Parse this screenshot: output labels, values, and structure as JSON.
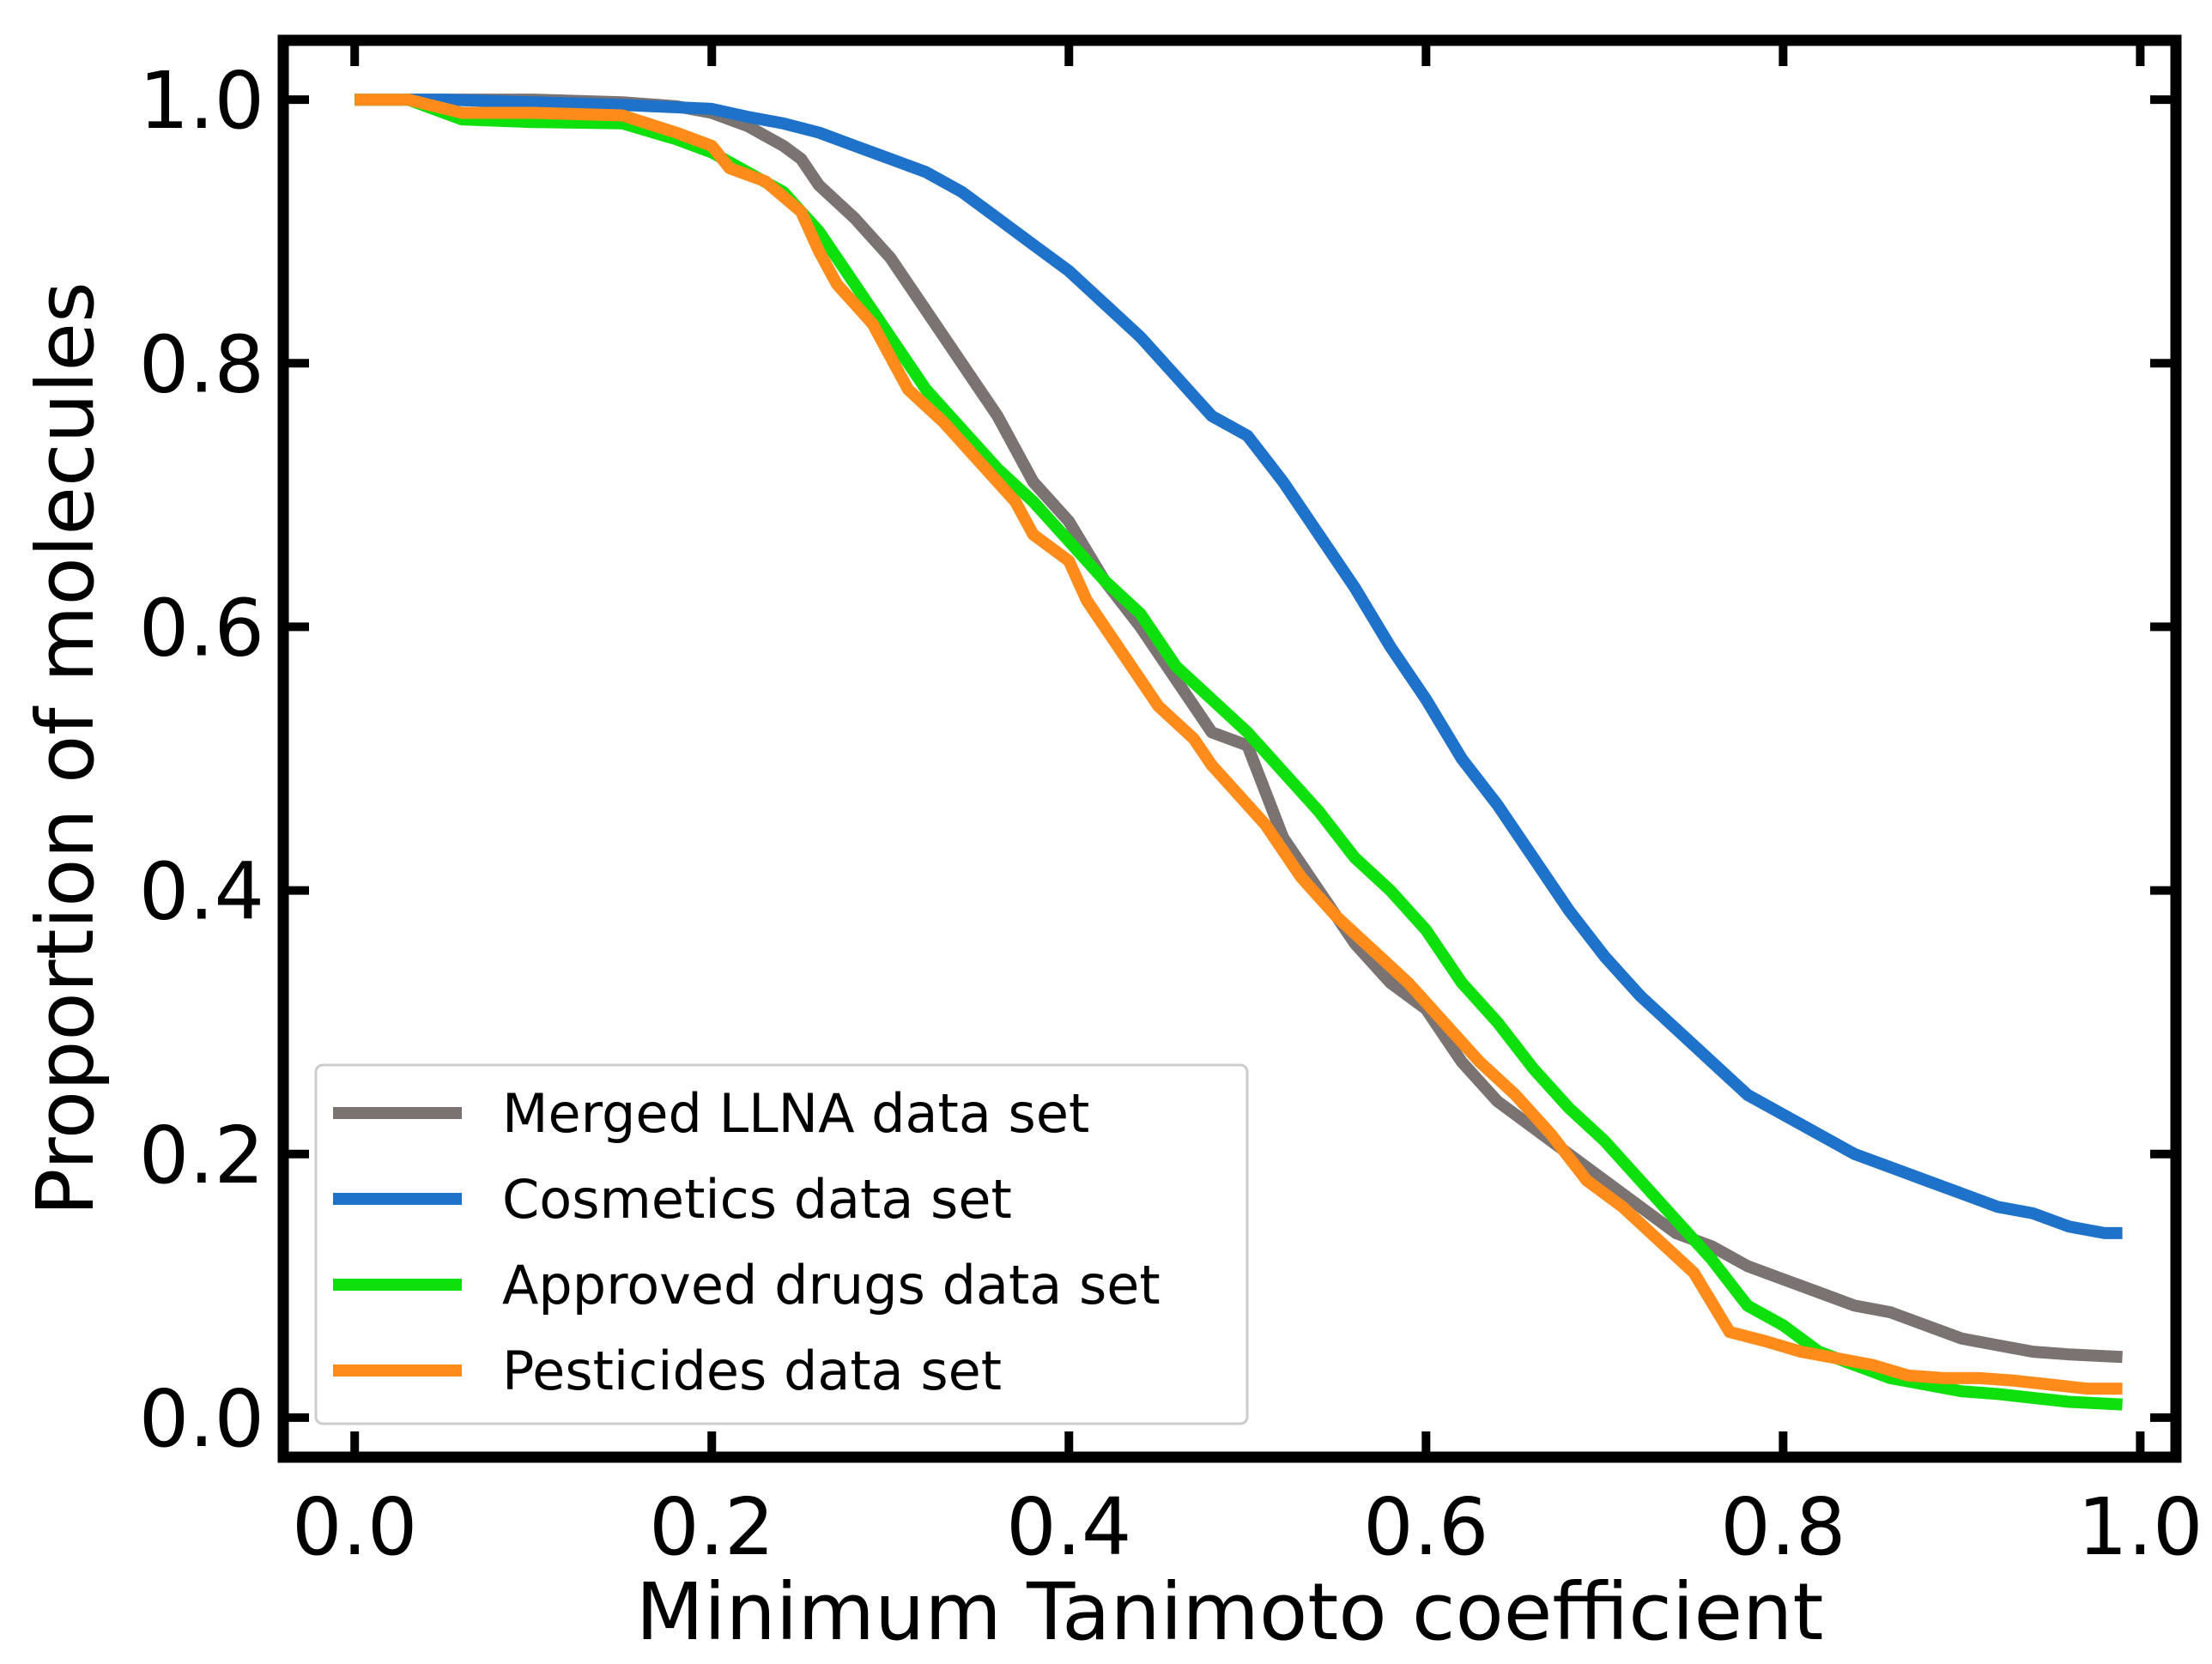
{
  "chart_data": {
    "type": "line",
    "title": "",
    "xlabel": "Minimum Tanimoto coefficient",
    "ylabel": "Proportion of molecules",
    "xlim": [
      -0.04,
      1.02
    ],
    "ylim": [
      -0.03,
      1.045
    ],
    "xticks": [
      "0.0",
      "0.2",
      "0.4",
      "0.6",
      "0.8",
      "1.0"
    ],
    "yticks": [
      "0.0",
      "0.2",
      "0.4",
      "0.6",
      "0.8",
      "1.0"
    ],
    "grid": false,
    "legend_position": "lower-left",
    "series": [
      {
        "name": "Merged LLNA data set",
        "color": "#7b7272",
        "points": [
          [
            0.0,
            1.0
          ],
          [
            0.05,
            1.0
          ],
          [
            0.1,
            1.0
          ],
          [
            0.15,
            0.998
          ],
          [
            0.18,
            0.995
          ],
          [
            0.2,
            0.99
          ],
          [
            0.22,
            0.98
          ],
          [
            0.24,
            0.965
          ],
          [
            0.25,
            0.955
          ],
          [
            0.26,
            0.935
          ],
          [
            0.28,
            0.91
          ],
          [
            0.3,
            0.88
          ],
          [
            0.32,
            0.84
          ],
          [
            0.34,
            0.8
          ],
          [
            0.36,
            0.76
          ],
          [
            0.38,
            0.71
          ],
          [
            0.4,
            0.68
          ],
          [
            0.42,
            0.635
          ],
          [
            0.44,
            0.6
          ],
          [
            0.46,
            0.56
          ],
          [
            0.48,
            0.52
          ],
          [
            0.5,
            0.51
          ],
          [
            0.52,
            0.44
          ],
          [
            0.54,
            0.4
          ],
          [
            0.56,
            0.36
          ],
          [
            0.58,
            0.33
          ],
          [
            0.6,
            0.31
          ],
          [
            0.62,
            0.27
          ],
          [
            0.64,
            0.24
          ],
          [
            0.66,
            0.22
          ],
          [
            0.68,
            0.2
          ],
          [
            0.7,
            0.18
          ],
          [
            0.72,
            0.16
          ],
          [
            0.74,
            0.14
          ],
          [
            0.76,
            0.13
          ],
          [
            0.78,
            0.115
          ],
          [
            0.8,
            0.105
          ],
          [
            0.82,
            0.095
          ],
          [
            0.84,
            0.085
          ],
          [
            0.86,
            0.08
          ],
          [
            0.88,
            0.07
          ],
          [
            0.9,
            0.06
          ],
          [
            0.92,
            0.055
          ],
          [
            0.94,
            0.05
          ],
          [
            0.96,
            0.048
          ],
          [
            0.99,
            0.046
          ]
        ]
      },
      {
        "name": "Cosmetics data set",
        "color": "#1f72c9",
        "points": [
          [
            0.0,
            1.0
          ],
          [
            0.05,
            1.0
          ],
          [
            0.1,
            0.998
          ],
          [
            0.15,
            0.996
          ],
          [
            0.2,
            0.993
          ],
          [
            0.22,
            0.987
          ],
          [
            0.24,
            0.982
          ],
          [
            0.26,
            0.975
          ],
          [
            0.28,
            0.965
          ],
          [
            0.3,
            0.955
          ],
          [
            0.32,
            0.945
          ],
          [
            0.34,
            0.93
          ],
          [
            0.36,
            0.91
          ],
          [
            0.38,
            0.89
          ],
          [
            0.4,
            0.87
          ],
          [
            0.42,
            0.845
          ],
          [
            0.44,
            0.82
          ],
          [
            0.46,
            0.79
          ],
          [
            0.48,
            0.76
          ],
          [
            0.5,
            0.745
          ],
          [
            0.52,
            0.71
          ],
          [
            0.54,
            0.67
          ],
          [
            0.56,
            0.63
          ],
          [
            0.58,
            0.585
          ],
          [
            0.6,
            0.545
          ],
          [
            0.62,
            0.5
          ],
          [
            0.64,
            0.465
          ],
          [
            0.66,
            0.425
          ],
          [
            0.68,
            0.385
          ],
          [
            0.7,
            0.35
          ],
          [
            0.72,
            0.32
          ],
          [
            0.74,
            0.295
          ],
          [
            0.76,
            0.27
          ],
          [
            0.78,
            0.245
          ],
          [
            0.8,
            0.23
          ],
          [
            0.82,
            0.215
          ],
          [
            0.84,
            0.2
          ],
          [
            0.86,
            0.19
          ],
          [
            0.88,
            0.18
          ],
          [
            0.9,
            0.17
          ],
          [
            0.92,
            0.16
          ],
          [
            0.94,
            0.155
          ],
          [
            0.96,
            0.145
          ],
          [
            0.98,
            0.14
          ],
          [
            0.99,
            0.14
          ]
        ]
      },
      {
        "name": "Approved drugs data set",
        "color": "#0de00d",
        "points": [
          [
            0.0,
            1.0
          ],
          [
            0.03,
            1.0
          ],
          [
            0.06,
            0.985
          ],
          [
            0.1,
            0.983
          ],
          [
            0.15,
            0.982
          ],
          [
            0.18,
            0.97
          ],
          [
            0.2,
            0.96
          ],
          [
            0.22,
            0.945
          ],
          [
            0.24,
            0.93
          ],
          [
            0.26,
            0.9
          ],
          [
            0.28,
            0.86
          ],
          [
            0.3,
            0.82
          ],
          [
            0.32,
            0.78
          ],
          [
            0.34,
            0.75
          ],
          [
            0.36,
            0.72
          ],
          [
            0.38,
            0.695
          ],
          [
            0.4,
            0.665
          ],
          [
            0.42,
            0.635
          ],
          [
            0.44,
            0.61
          ],
          [
            0.46,
            0.57
          ],
          [
            0.48,
            0.545
          ],
          [
            0.5,
            0.52
          ],
          [
            0.52,
            0.49
          ],
          [
            0.54,
            0.46
          ],
          [
            0.56,
            0.425
          ],
          [
            0.58,
            0.4
          ],
          [
            0.6,
            0.37
          ],
          [
            0.62,
            0.33
          ],
          [
            0.64,
            0.3
          ],
          [
            0.66,
            0.265
          ],
          [
            0.68,
            0.235
          ],
          [
            0.7,
            0.21
          ],
          [
            0.72,
            0.18
          ],
          [
            0.74,
            0.15
          ],
          [
            0.76,
            0.12
          ],
          [
            0.78,
            0.085
          ],
          [
            0.8,
            0.07
          ],
          [
            0.82,
            0.05
          ],
          [
            0.84,
            0.04
          ],
          [
            0.86,
            0.03
          ],
          [
            0.88,
            0.025
          ],
          [
            0.9,
            0.02
          ],
          [
            0.92,
            0.018
          ],
          [
            0.94,
            0.015
          ],
          [
            0.96,
            0.012
          ],
          [
            0.99,
            0.01
          ]
        ]
      },
      {
        "name": "Pesticides data set",
        "color": "#ff8c1a",
        "points": [
          [
            0.0,
            1.0
          ],
          [
            0.03,
            1.0
          ],
          [
            0.06,
            0.99
          ],
          [
            0.1,
            0.99
          ],
          [
            0.15,
            0.988
          ],
          [
            0.18,
            0.975
          ],
          [
            0.2,
            0.965
          ],
          [
            0.21,
            0.948
          ],
          [
            0.23,
            0.938
          ],
          [
            0.25,
            0.915
          ],
          [
            0.26,
            0.885
          ],
          [
            0.27,
            0.86
          ],
          [
            0.29,
            0.83
          ],
          [
            0.31,
            0.78
          ],
          [
            0.33,
            0.755
          ],
          [
            0.35,
            0.725
          ],
          [
            0.37,
            0.695
          ],
          [
            0.38,
            0.67
          ],
          [
            0.4,
            0.65
          ],
          [
            0.41,
            0.62
          ],
          [
            0.43,
            0.58
          ],
          [
            0.45,
            0.54
          ],
          [
            0.47,
            0.515
          ],
          [
            0.48,
            0.495
          ],
          [
            0.49,
            0.48
          ],
          [
            0.51,
            0.45
          ],
          [
            0.53,
            0.41
          ],
          [
            0.55,
            0.38
          ],
          [
            0.57,
            0.355
          ],
          [
            0.59,
            0.33
          ],
          [
            0.61,
            0.3
          ],
          [
            0.63,
            0.27
          ],
          [
            0.65,
            0.245
          ],
          [
            0.67,
            0.215
          ],
          [
            0.69,
            0.18
          ],
          [
            0.71,
            0.16
          ],
          [
            0.73,
            0.135
          ],
          [
            0.75,
            0.11
          ],
          [
            0.77,
            0.065
          ],
          [
            0.79,
            0.058
          ],
          [
            0.81,
            0.05
          ],
          [
            0.83,
            0.045
          ],
          [
            0.85,
            0.04
          ],
          [
            0.87,
            0.032
          ],
          [
            0.89,
            0.03
          ],
          [
            0.91,
            0.03
          ],
          [
            0.93,
            0.028
          ],
          [
            0.95,
            0.025
          ],
          [
            0.97,
            0.022
          ],
          [
            0.99,
            0.022
          ]
        ]
      }
    ]
  }
}
